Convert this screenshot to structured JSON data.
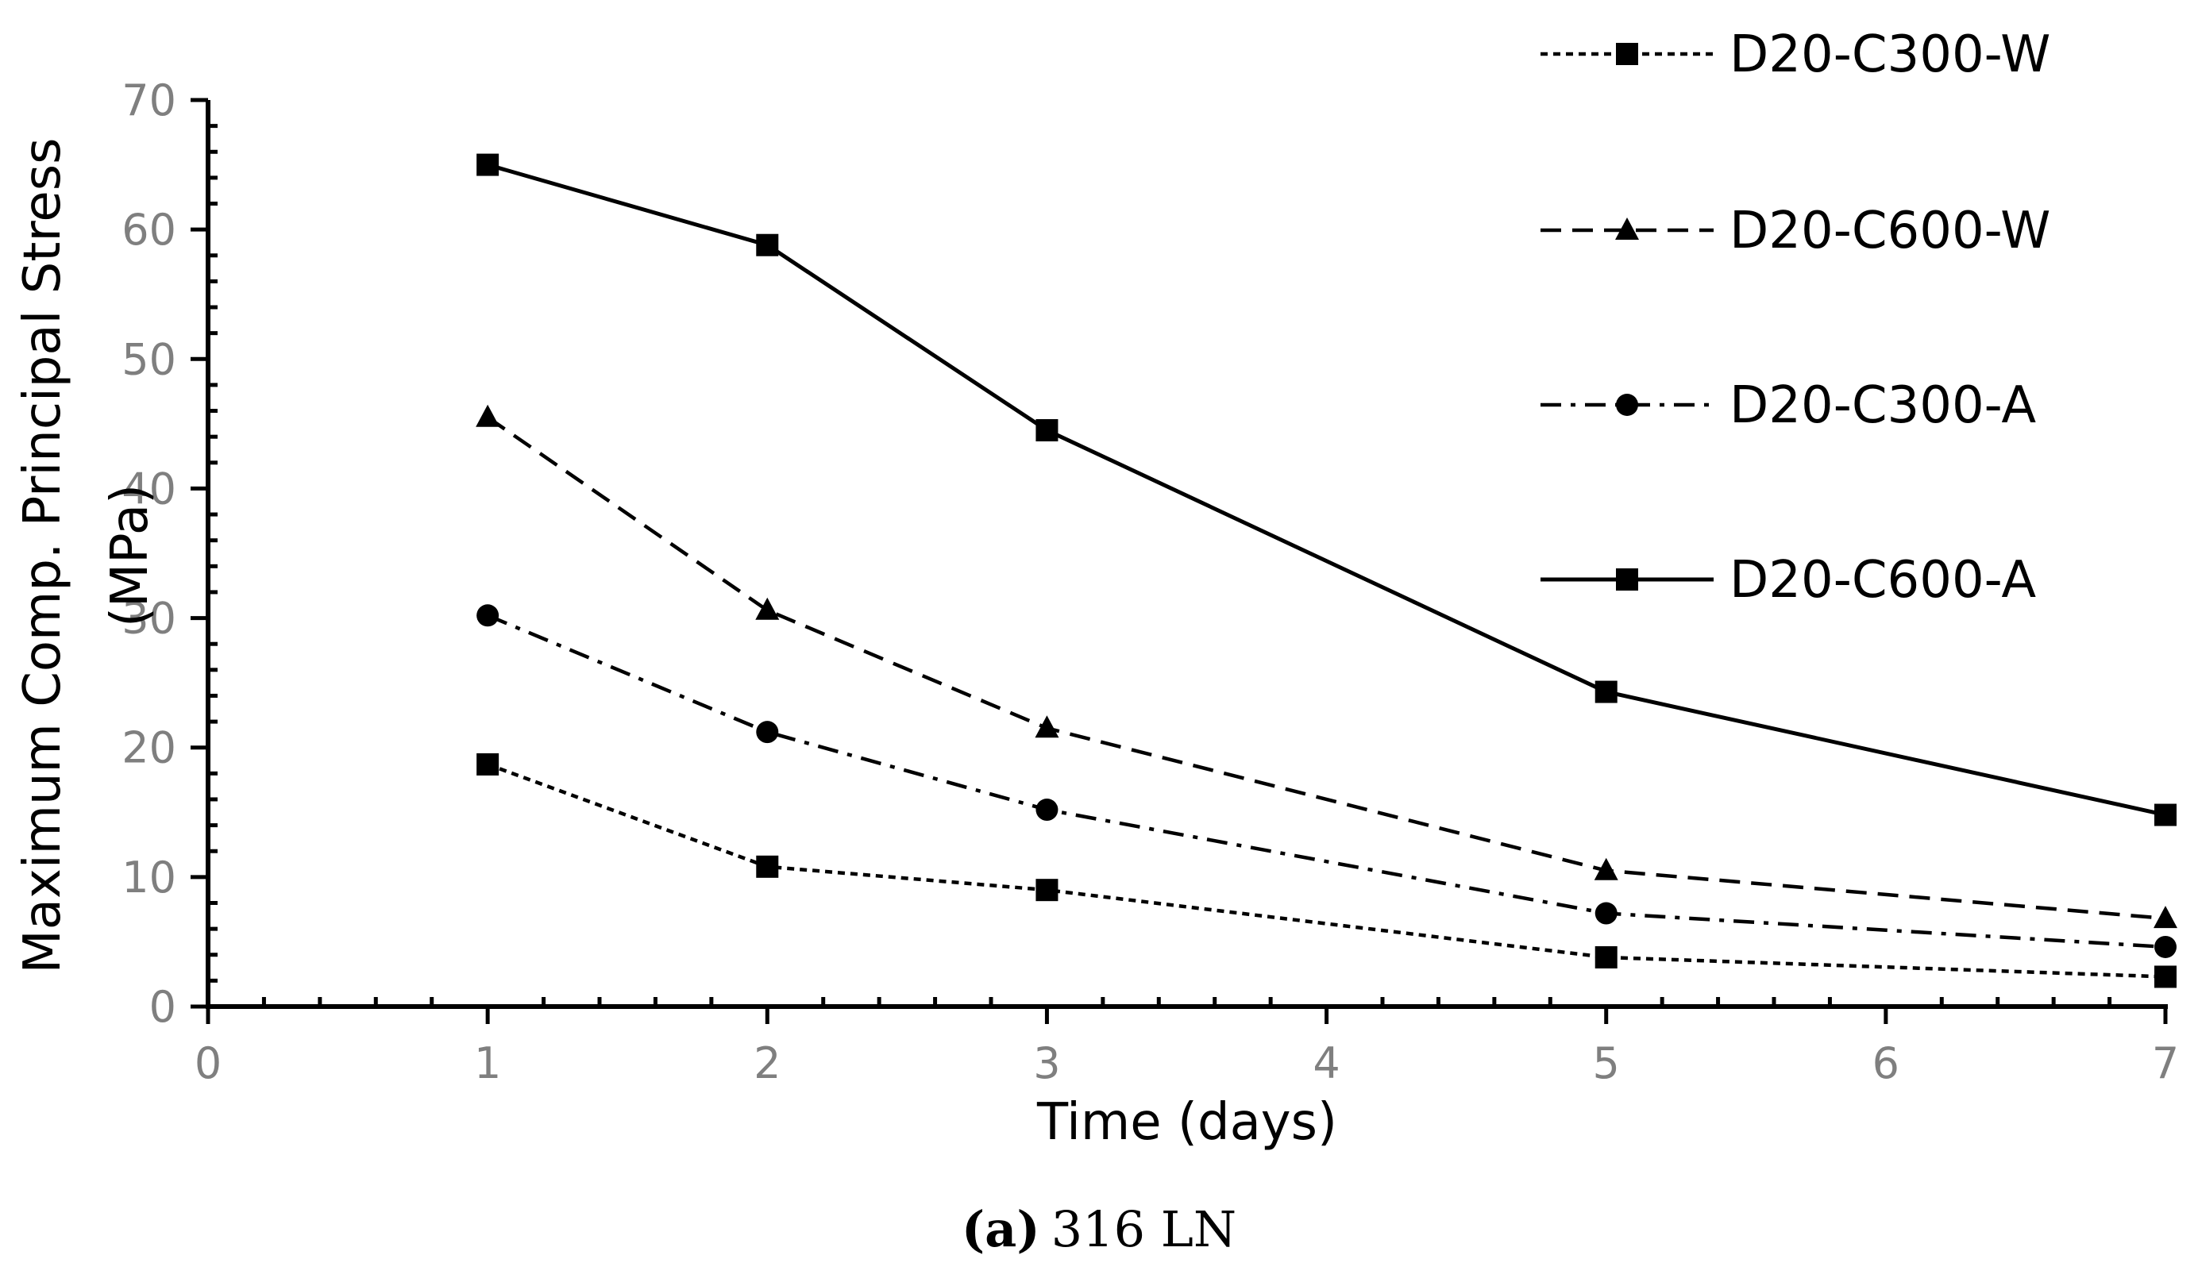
{
  "chart_data": {
    "type": "line",
    "caption": {
      "label": "(a)",
      "text": "316 LN"
    },
    "xlabel": "Time (days)",
    "ylabel_line1": "Maximum Comp. Principal Stress",
    "ylabel_line2": "(MPa)",
    "xlim": [
      0,
      7
    ],
    "ylim": [
      0,
      70
    ],
    "xticks": [
      0,
      1,
      2,
      3,
      4,
      5,
      6,
      7
    ],
    "xtick_labels": [
      "0",
      "1",
      "2",
      "3",
      "4",
      "5",
      "6",
      "7"
    ],
    "yticks": [
      0,
      10,
      20,
      30,
      40,
      50,
      60,
      70
    ],
    "ytick_labels": [
      "0",
      "10",
      "20",
      "30",
      "40",
      "50",
      "60",
      "70"
    ],
    "grid": false,
    "legend_position": "top-right",
    "x": [
      1,
      2,
      3,
      5,
      7
    ],
    "series": [
      {
        "name": "D20-C300-W",
        "values": [
          18.7,
          10.8,
          9.0,
          3.8,
          2.3
        ],
        "marker": "square",
        "dash": "dotted"
      },
      {
        "name": "D20-C600-W",
        "values": [
          45.5,
          30.6,
          21.5,
          10.5,
          6.8
        ],
        "marker": "triangle",
        "dash": "dashed"
      },
      {
        "name": "D20-C300-A",
        "values": [
          30.2,
          21.2,
          15.2,
          7.2,
          4.6
        ],
        "marker": "circle",
        "dash": "dash-dot"
      },
      {
        "name": "D20-C600-A",
        "values": [
          65.0,
          58.8,
          44.5,
          24.3,
          14.8
        ],
        "marker": "square",
        "dash": "solid"
      }
    ],
    "colors": {
      "line": "#000000",
      "tick_label": "#7f7f7f"
    }
  }
}
